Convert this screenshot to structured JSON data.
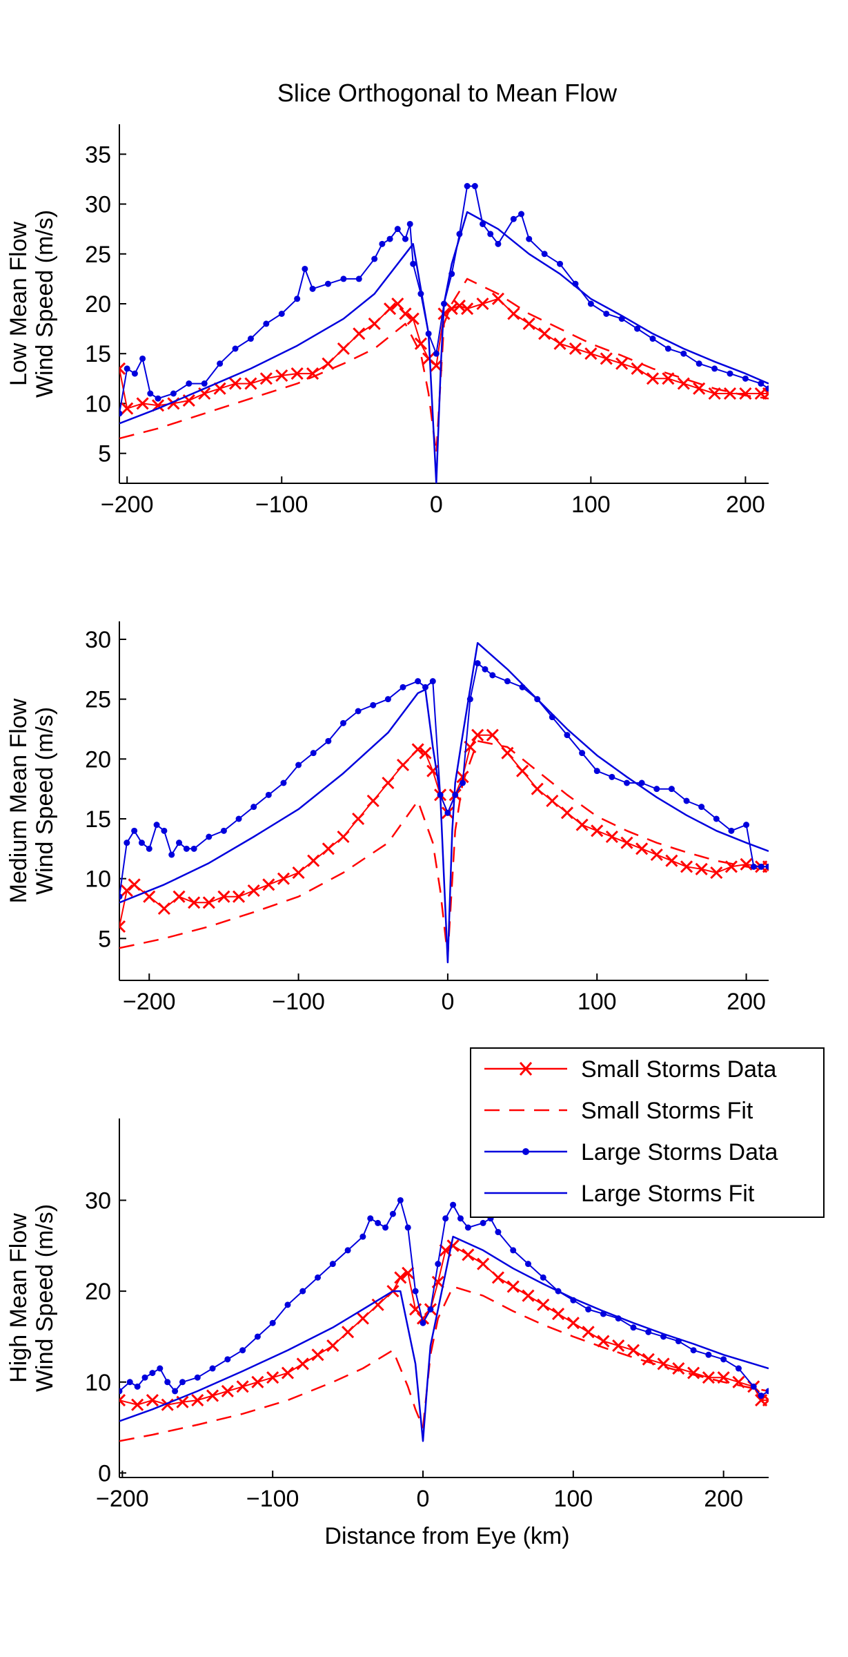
{
  "figure": {
    "title": "Slice Orthogonal to Mean Flow",
    "xlabel": "Distance from Eye (km)"
  },
  "legend": {
    "entries": [
      {
        "label": "Small Storms Data",
        "color": "#ff0000",
        "style": "x-marker-line"
      },
      {
        "label": "Small Storms Fit",
        "color": "#ff0000",
        "style": "dashed"
      },
      {
        "label": "Large Storms Data",
        "color": "#0000dd",
        "style": "dot-marker-line"
      },
      {
        "label": "Large Storms Fit",
        "color": "#0000dd",
        "style": "solid"
      }
    ],
    "placement": "top-right of third panel"
  },
  "chart_data": [
    {
      "type": "line",
      "ylabel_line1": "Low Mean Flow",
      "ylabel_line2": "Wind Speed (m/s)",
      "xlim": [
        -205,
        215
      ],
      "ylim": [
        2,
        38
      ],
      "xticks": [
        -200,
        -100,
        0,
        100,
        200
      ],
      "xtick_labels": [
        "−200",
        "−100",
        "0",
        "100",
        "200"
      ],
      "yticks": [
        5,
        10,
        15,
        20,
        25,
        30,
        35
      ],
      "ytick_labels": [
        "5",
        "10",
        "15",
        "20",
        "25",
        "30",
        "35"
      ],
      "series": [
        {
          "name": "Small Storms Data",
          "x": [
            -205,
            -200,
            -190,
            -180,
            -170,
            -160,
            -150,
            -140,
            -130,
            -120,
            -110,
            -100,
            -90,
            -80,
            -70,
            -60,
            -50,
            -40,
            -30,
            -25,
            -20,
            -15,
            -10,
            -5,
            0,
            5,
            10,
            15,
            20,
            30,
            40,
            50,
            60,
            70,
            80,
            90,
            100,
            110,
            120,
            130,
            140,
            150,
            160,
            170,
            180,
            190,
            200,
            210,
            215
          ],
          "y": [
            13.5,
            9.5,
            10,
            9.8,
            10,
            10.3,
            11,
            11.5,
            12,
            12,
            12.5,
            12.8,
            13,
            13,
            14,
            15.5,
            17,
            18,
            19.5,
            20,
            19,
            18.5,
            16,
            14.5,
            13.8,
            19,
            19.5,
            19.8,
            19.5,
            20,
            20.5,
            19,
            18,
            17,
            16,
            15.5,
            15,
            14.5,
            14,
            13.5,
            12.5,
            12.5,
            12,
            11.5,
            11,
            11,
            11,
            11,
            11
          ]
        },
        {
          "name": "Small Storms Fit",
          "x": [
            -205,
            -180,
            -150,
            -120,
            -90,
            -60,
            -40,
            -20,
            -10,
            -5,
            0,
            5,
            10,
            20,
            40,
            60,
            80,
            100,
            120,
            140,
            160,
            180,
            200,
            215
          ],
          "y": [
            6.5,
            7.5,
            9,
            10.5,
            12,
            14,
            15.5,
            18,
            15,
            11,
            5,
            18,
            20,
            22.5,
            21,
            19,
            17.5,
            16,
            14.8,
            13.5,
            12.5,
            11.5,
            10.8,
            10.5
          ]
        },
        {
          "name": "Large Storms Data",
          "x": [
            -205,
            -200,
            -195,
            -190,
            -185,
            -180,
            -170,
            -160,
            -150,
            -140,
            -130,
            -120,
            -110,
            -100,
            -90,
            -85,
            -80,
            -70,
            -60,
            -50,
            -40,
            -35,
            -30,
            -25,
            -20,
            -17,
            -15,
            -10,
            -5,
            0,
            5,
            10,
            15,
            20,
            25,
            30,
            35,
            40,
            50,
            55,
            60,
            70,
            80,
            90,
            100,
            110,
            120,
            130,
            140,
            150,
            160,
            170,
            180,
            190,
            200,
            210,
            215
          ],
          "y": [
            9,
            13.5,
            13,
            14.5,
            11,
            10.5,
            11,
            12,
            12,
            14,
            15.5,
            16.5,
            18,
            19,
            20.5,
            23.5,
            21.5,
            22,
            22.5,
            22.5,
            24.5,
            26,
            26.5,
            27.5,
            26.5,
            28,
            24,
            21,
            17,
            15,
            20,
            23,
            27,
            31.8,
            31.8,
            28,
            27,
            26,
            28.5,
            29,
            26.5,
            25,
            24,
            22,
            20,
            19,
            18.5,
            17.5,
            16.5,
            15.5,
            15,
            14,
            13.5,
            13,
            12.5,
            12,
            11.5
          ]
        },
        {
          "name": "Large Storms Fit",
          "x": [
            -205,
            -180,
            -150,
            -120,
            -90,
            -60,
            -40,
            -20,
            -15,
            -10,
            -5,
            0,
            3,
            5,
            10,
            20,
            40,
            60,
            80,
            100,
            120,
            140,
            160,
            180,
            200,
            215
          ],
          "y": [
            8,
            9.5,
            11.5,
            13.5,
            15.8,
            18.5,
            21,
            25,
            26,
            21.5,
            17,
            2,
            14,
            20,
            24,
            29.2,
            27.5,
            25,
            23,
            20.5,
            18.8,
            17,
            15.5,
            14.2,
            13,
            12
          ]
        }
      ]
    },
    {
      "type": "line",
      "ylabel_line1": "Medium Mean Flow",
      "ylabel_line2": "Wind Speed (m/s)",
      "xlim": [
        -220,
        215
      ],
      "ylim": [
        1.5,
        31.5
      ],
      "xticks": [
        -200,
        -100,
        0,
        100,
        200
      ],
      "xtick_labels": [
        "−200",
        "−100",
        "0",
        "100",
        "200"
      ],
      "yticks": [
        5,
        10,
        15,
        20,
        25,
        30
      ],
      "ytick_labels": [
        "5",
        "10",
        "15",
        "20",
        "25",
        "30"
      ],
      "series": [
        {
          "name": "Small Storms Data",
          "x": [
            -220,
            -215,
            -210,
            -200,
            -190,
            -180,
            -170,
            -160,
            -150,
            -140,
            -130,
            -120,
            -110,
            -100,
            -90,
            -80,
            -70,
            -60,
            -50,
            -40,
            -30,
            -20,
            -15,
            -10,
            -5,
            0,
            5,
            10,
            15,
            20,
            30,
            40,
            50,
            60,
            70,
            80,
            90,
            100,
            110,
            120,
            130,
            140,
            150,
            160,
            170,
            180,
            190,
            200,
            210,
            215
          ],
          "y": [
            6,
            9,
            9.5,
            8.5,
            7.5,
            8.5,
            8,
            8,
            8.5,
            8.5,
            9,
            9.5,
            10,
            10.5,
            11.5,
            12.5,
            13.5,
            15,
            16.5,
            18,
            19.5,
            20.8,
            20.5,
            19,
            17,
            15.5,
            17,
            18.5,
            21,
            22,
            22,
            20.5,
            19,
            17.5,
            16.5,
            15.5,
            14.5,
            14,
            13.5,
            13,
            12.5,
            12,
            11.5,
            11,
            10.8,
            10.5,
            11,
            11.2,
            11,
            11
          ]
        },
        {
          "name": "Small Storms Fit",
          "x": [
            -220,
            -190,
            -160,
            -130,
            -100,
            -70,
            -40,
            -20,
            -10,
            -5,
            0,
            5,
            10,
            20,
            40,
            60,
            80,
            100,
            120,
            140,
            160,
            180,
            200,
            215
          ],
          "y": [
            4.2,
            5,
            6,
            7.2,
            8.5,
            10.5,
            13,
            16.5,
            13,
            9,
            3.5,
            14,
            18,
            21.5,
            21,
            19,
            17,
            15.2,
            14,
            13,
            12.2,
            11.5,
            11,
            10.7
          ]
        },
        {
          "name": "Large Storms Data",
          "x": [
            -220,
            -215,
            -210,
            -205,
            -200,
            -195,
            -190,
            -185,
            -180,
            -175,
            -170,
            -160,
            -150,
            -140,
            -130,
            -120,
            -110,
            -100,
            -90,
            -80,
            -70,
            -60,
            -50,
            -40,
            -30,
            -20,
            -15,
            -10,
            -5,
            0,
            5,
            10,
            15,
            20,
            25,
            30,
            40,
            50,
            60,
            70,
            80,
            90,
            100,
            110,
            120,
            130,
            140,
            150,
            160,
            170,
            180,
            190,
            200,
            205,
            210,
            215
          ],
          "y": [
            8.5,
            13,
            14,
            13,
            12.5,
            14.5,
            14,
            12,
            13,
            12.5,
            12.5,
            13.5,
            14,
            15,
            16,
            17,
            18,
            19.5,
            20.5,
            21.5,
            23,
            24,
            24.5,
            25,
            26,
            26.5,
            26,
            26.5,
            17,
            15.5,
            17,
            18,
            25,
            28,
            27.5,
            27,
            26.5,
            26,
            25,
            23.5,
            22,
            20.5,
            19,
            18.5,
            18,
            18,
            17.5,
            17.5,
            16.5,
            16,
            15,
            14,
            14.5,
            11,
            11,
            11
          ]
        },
        {
          "name": "Large Storms Fit",
          "x": [
            -220,
            -190,
            -160,
            -130,
            -100,
            -70,
            -40,
            -20,
            -15,
            -10,
            -5,
            0,
            3,
            5,
            10,
            20,
            40,
            60,
            80,
            100,
            120,
            140,
            160,
            180,
            200,
            215
          ],
          "y": [
            8,
            9.5,
            11.3,
            13.5,
            15.8,
            18.8,
            22.2,
            25.5,
            25.8,
            21,
            17,
            3,
            14,
            18,
            22,
            29.7,
            27.5,
            25,
            22.5,
            20.3,
            18.5,
            16.8,
            15.3,
            14,
            13,
            12.3
          ]
        }
      ]
    },
    {
      "type": "line",
      "ylabel_line1": "High Mean Flow",
      "ylabel_line2": "Wind Speed (m/s)",
      "xlim": [
        -202,
        230
      ],
      "ylim": [
        -0.5,
        39
      ],
      "xticks": [
        -200,
        -100,
        0,
        100,
        200
      ],
      "xtick_labels": [
        "−200",
        "−100",
        "0",
        "100",
        "200"
      ],
      "yticks": [
        0,
        10,
        20,
        30
      ],
      "ytick_labels": [
        "0",
        "10",
        "20",
        "30"
      ],
      "series": [
        {
          "name": "Small Storms Data",
          "x": [
            -202,
            -190,
            -180,
            -170,
            -160,
            -150,
            -140,
            -130,
            -120,
            -110,
            -100,
            -90,
            -80,
            -70,
            -60,
            -50,
            -40,
            -30,
            -20,
            -15,
            -10,
            -5,
            0,
            5,
            10,
            15,
            20,
            30,
            40,
            50,
            60,
            70,
            80,
            90,
            100,
            110,
            120,
            130,
            140,
            150,
            160,
            170,
            180,
            190,
            200,
            210,
            220,
            225,
            230
          ],
          "y": [
            8,
            7.5,
            8,
            7.5,
            7.8,
            8,
            8.5,
            9,
            9.5,
            10,
            10.5,
            11,
            12,
            13,
            14,
            15.5,
            17,
            18.5,
            20,
            21.5,
            22,
            18,
            17,
            18,
            21,
            24.5,
            25,
            24,
            23,
            21.5,
            20.5,
            19.5,
            18.5,
            17.5,
            16.5,
            15.5,
            14.5,
            14,
            13.5,
            12.5,
            12,
            11.5,
            11,
            10.5,
            10.5,
            10,
            9.5,
            8,
            8
          ]
        },
        {
          "name": "Small Storms Fit",
          "x": [
            -202,
            -180,
            -150,
            -120,
            -90,
            -60,
            -40,
            -20,
            -10,
            -5,
            0,
            5,
            10,
            20,
            40,
            60,
            80,
            100,
            120,
            140,
            160,
            180,
            200,
            220,
            230
          ],
          "y": [
            3.5,
            4.2,
            5.3,
            6.5,
            8,
            10,
            11.5,
            13.5,
            9.5,
            7,
            5,
            13,
            17,
            20.5,
            19.5,
            17.8,
            16.3,
            15,
            13.8,
            12.7,
            11.7,
            10.8,
            10,
            9.3,
            9
          ]
        },
        {
          "name": "Large Storms Data",
          "x": [
            -202,
            -195,
            -190,
            -185,
            -180,
            -175,
            -170,
            -165,
            -160,
            -150,
            -140,
            -130,
            -120,
            -110,
            -100,
            -90,
            -80,
            -70,
            -60,
            -50,
            -40,
            -35,
            -30,
            -25,
            -20,
            -15,
            -10,
            -5,
            0,
            5,
            10,
            15,
            20,
            25,
            30,
            40,
            45,
            50,
            60,
            70,
            80,
            90,
            100,
            110,
            120,
            130,
            140,
            150,
            160,
            170,
            180,
            190,
            200,
            210,
            220,
            225,
            230
          ],
          "y": [
            9,
            10,
            9.5,
            10.5,
            11,
            11.5,
            10,
            9,
            10,
            10.5,
            11.5,
            12.5,
            13.5,
            15,
            16.5,
            18.5,
            20,
            21.5,
            23,
            24.5,
            26,
            28,
            27.5,
            27,
            28.5,
            30,
            27,
            20,
            16.5,
            18,
            23,
            28,
            29.5,
            28,
            27,
            27.5,
            28,
            26.5,
            24.5,
            23,
            21.5,
            20,
            19,
            18,
            17.5,
            17,
            16,
            15.5,
            15,
            14.5,
            13.5,
            13,
            12.5,
            11.5,
            9.5,
            8.5,
            9
          ]
        },
        {
          "name": "Large Storms Fit",
          "x": [
            -202,
            -180,
            -150,
            -120,
            -90,
            -60,
            -40,
            -20,
            -15,
            -10,
            -5,
            0,
            3,
            5,
            10,
            20,
            40,
            60,
            80,
            100,
            120,
            140,
            160,
            180,
            200,
            220,
            230
          ],
          "y": [
            5.7,
            7,
            9,
            11.2,
            13.5,
            16,
            18,
            20,
            20,
            16,
            12,
            3.5,
            10,
            14,
            18,
            26,
            24.5,
            22.5,
            20.8,
            19.2,
            17.8,
            16.5,
            15.3,
            14.2,
            13,
            12,
            11.5
          ]
        }
      ]
    }
  ]
}
